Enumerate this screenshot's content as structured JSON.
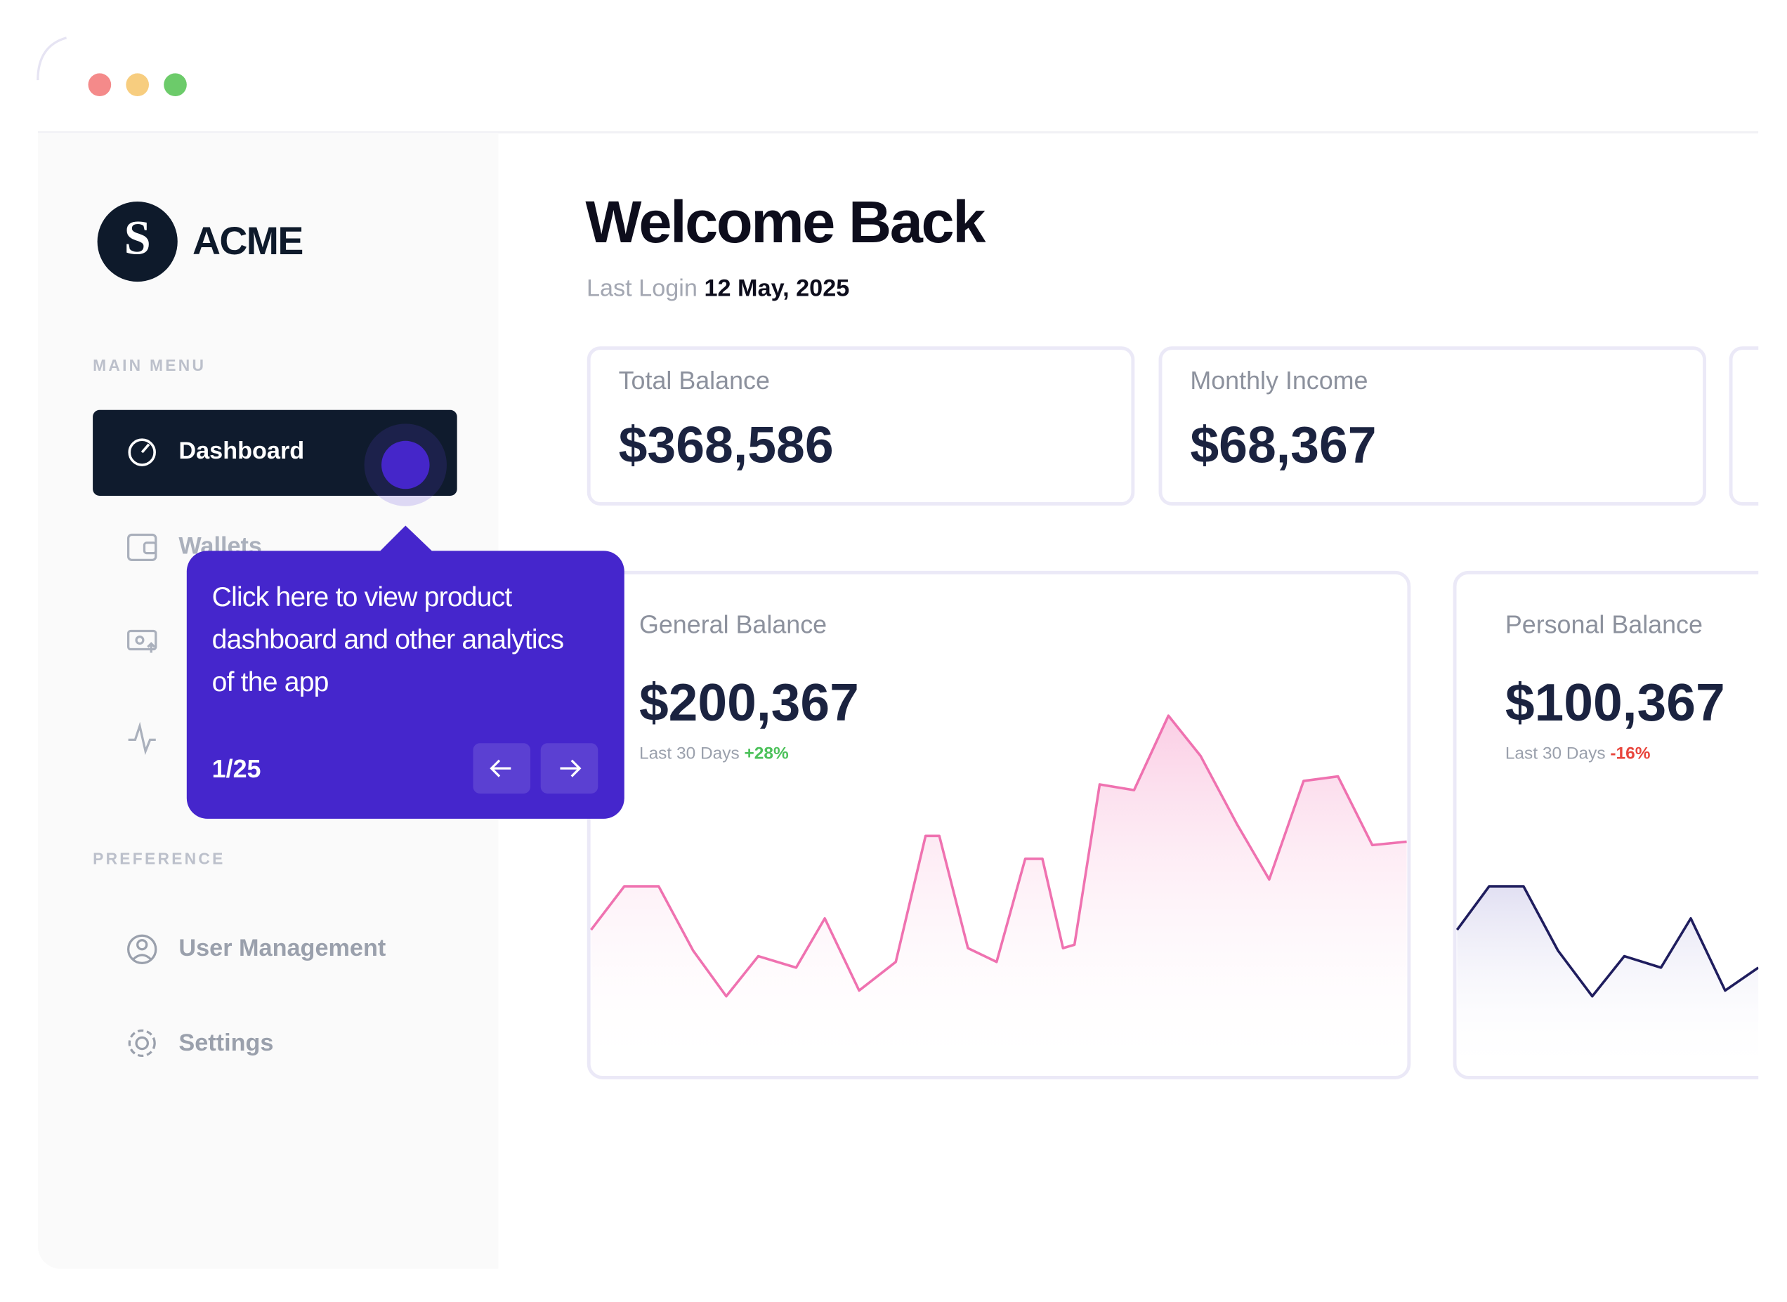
{
  "sidebar": {
    "logo_letter": "S",
    "brand": "ACME",
    "main_menu_title": "MAIN MENU",
    "main_menu": [
      "Dashboard",
      "Wallets"
    ],
    "preference_title": "PREFERENCE",
    "preference": [
      "User Management",
      "Settings"
    ]
  },
  "tooltip": {
    "lines": [
      "Click here to view product",
      "dashboard and other analytics",
      "of the app"
    ],
    "step": "1/25"
  },
  "header": {
    "title": "Welcome Back",
    "last_login_label": "Last Login",
    "last_login_date": "12 May, 2025"
  },
  "stats": [
    {
      "label": "Total Balance",
      "value": "$368,586"
    },
    {
      "label": "Monthly Income",
      "value": "$68,367"
    }
  ],
  "balances": [
    {
      "label": "General Balance",
      "value": "$200,367",
      "period": "Last 30 Days",
      "change": "+28%"
    },
    {
      "label": "Personal Balance",
      "value": "$100,367",
      "period": "Last 30 Days",
      "change": "-16%"
    }
  ]
}
